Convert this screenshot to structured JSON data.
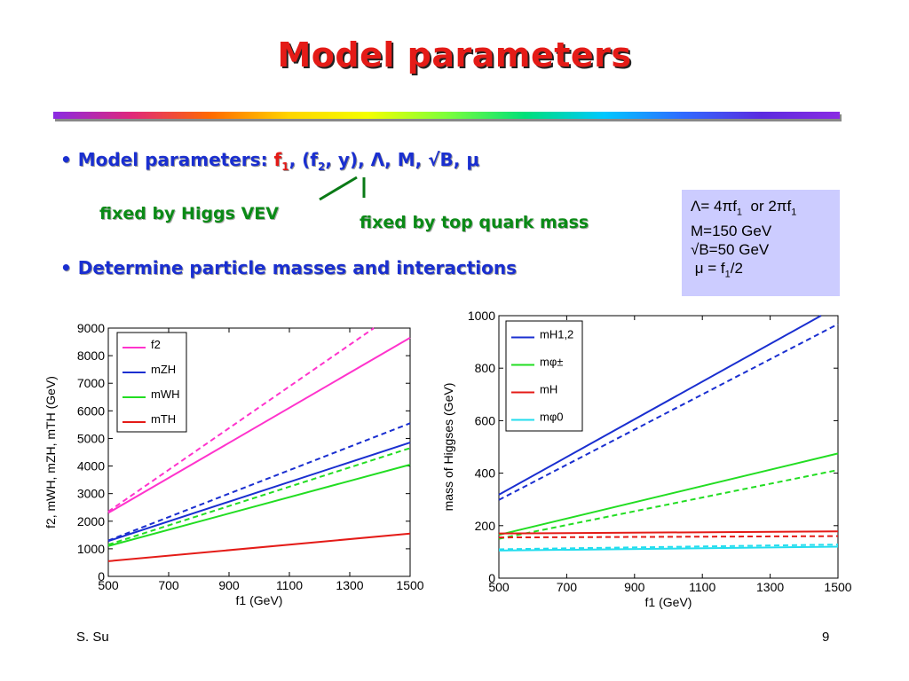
{
  "slide": {
    "title": "Model parameters",
    "bullet1_label": "Model parameters:",
    "bullet1_params": "f1, (f2, y), Λ, M, √B, μ",
    "annotation_higgs": "fixed by Higgs VEV",
    "annotation_top": "fixed by top quark mass",
    "bullet2": "Determine particle masses and interactions",
    "box_lines": [
      "Λ= 4πf1  or 2πf1",
      "M=150 GeV",
      "√B=50 GeV",
      "μ = f1/2"
    ],
    "footer_author": "S. Su",
    "page_number": "9"
  },
  "chart_data": [
    {
      "type": "line",
      "xlabel": "f1  (GeV)",
      "ylabel": "f2, mWH, mZH, mTH  (GeV)",
      "xlim": [
        500,
        1500
      ],
      "ylim": [
        0,
        9000
      ],
      "xticks": [
        500,
        700,
        900,
        1100,
        1300,
        1500
      ],
      "yticks": [
        0,
        1000,
        2000,
        3000,
        4000,
        5000,
        6000,
        7000,
        8000,
        9000
      ],
      "legend": "top-left",
      "grid": false,
      "series": [
        {
          "name": "f2",
          "color": "#ff33cc",
          "solid": [
            [
              500,
              2300
            ],
            [
              1500,
              8650
            ]
          ],
          "dashed": [
            [
              500,
              2350
            ],
            [
              1380,
              9000
            ]
          ]
        },
        {
          "name": "mZH",
          "color": "#1a2fd0",
          "solid": [
            [
              500,
              1280
            ],
            [
              1500,
              4850
            ]
          ],
          "dashed": [
            [
              500,
              1300
            ],
            [
              1500,
              5550
            ]
          ]
        },
        {
          "name": "mWH",
          "color": "#22dd22",
          "solid": [
            [
              500,
              1100
            ],
            [
              1500,
              4050
            ]
          ],
          "dashed": [
            [
              500,
              1150
            ],
            [
              1500,
              4650
            ]
          ]
        },
        {
          "name": "mTH",
          "color": "#e41b17",
          "solid": [
            [
              500,
              550
            ],
            [
              1500,
              1550
            ]
          ]
        }
      ]
    },
    {
      "type": "line",
      "xlabel": "f1  (GeV)",
      "ylabel": "mass of Higgses  (GeV)",
      "xlim": [
        500,
        1500
      ],
      "ylim": [
        0,
        1000
      ],
      "xticks": [
        500,
        700,
        900,
        1100,
        1300,
        1500
      ],
      "yticks": [
        0,
        200,
        400,
        600,
        800,
        1000
      ],
      "legend": "top-left",
      "grid": false,
      "series": [
        {
          "name": "mH1,2",
          "color": "#1a2fd0",
          "solid": [
            [
              500,
              318
            ],
            [
              1450,
              1000
            ]
          ],
          "dashed": [
            [
              500,
              298
            ],
            [
              1500,
              968
            ]
          ]
        },
        {
          "name": "mφ±",
          "color": "#22dd22",
          "solid": [
            [
              500,
              165
            ],
            [
              1500,
              475
            ]
          ],
          "dashed": [
            [
              500,
              150
            ],
            [
              1500,
              412
            ]
          ]
        },
        {
          "name": "mH",
          "color": "#e41b17",
          "solid": [
            [
              500,
              170
            ],
            [
              1500,
              178
            ]
          ],
          "dashed": [
            [
              500,
              155
            ],
            [
              1500,
              160
            ]
          ]
        },
        {
          "name": "mφ0",
          "color": "#22ddee",
          "solid": [
            [
              500,
              105
            ],
            [
              1500,
              120
            ]
          ],
          "dashed": [
            [
              500,
              110
            ],
            [
              1500,
              128
            ]
          ]
        }
      ]
    }
  ]
}
